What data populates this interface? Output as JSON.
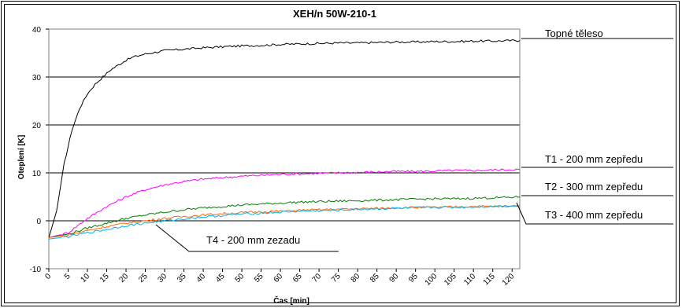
{
  "chart_data": {
    "type": "line",
    "title": "XEH/n 50W-210-1",
    "xlabel": "Čas [min]",
    "ylabel": "Oteplení [K]",
    "xlim": [
      0,
      122
    ],
    "ylim": [
      -10,
      40
    ],
    "x_ticks": [
      0,
      5,
      10,
      15,
      20,
      25,
      30,
      35,
      40,
      45,
      50,
      55,
      60,
      65,
      70,
      75,
      80,
      85,
      90,
      95,
      100,
      105,
      110,
      115,
      120
    ],
    "y_ticks": [
      -10,
      0,
      10,
      20,
      30,
      40
    ],
    "grid": "horizontal",
    "series": [
      {
        "name": "Topné těleso",
        "color": "#000000",
        "x": [
          0,
          2,
          4,
          6,
          8,
          10,
          12,
          14,
          16,
          18,
          20,
          22,
          25,
          30,
          35,
          40,
          45,
          50,
          55,
          60,
          65,
          70,
          75,
          80,
          85,
          90,
          95,
          100,
          105,
          110,
          115,
          120,
          122
        ],
        "y": [
          -3.5,
          2,
          12,
          19,
          23.5,
          26.5,
          28.5,
          30,
          31.5,
          32.5,
          33.5,
          34.2,
          34.8,
          35.5,
          35.8,
          36.1,
          36.3,
          36.5,
          36.6,
          36.8,
          36.9,
          37.0,
          37.1,
          37.1,
          37.2,
          37.3,
          37.3,
          37.4,
          37.4,
          37.5,
          37.5,
          37.6,
          37.6
        ]
      },
      {
        "name": "T1 - 200 mm zepředu",
        "color": "#ff00ff",
        "x": [
          0,
          5,
          10,
          15,
          20,
          25,
          30,
          35,
          40,
          45,
          50,
          55,
          60,
          65,
          70,
          75,
          80,
          85,
          90,
          95,
          100,
          105,
          110,
          115,
          120,
          122
        ],
        "y": [
          -3.5,
          -2.5,
          0.5,
          3,
          5,
          6.5,
          7.5,
          8.2,
          8.7,
          9.0,
          9.3,
          9.5,
          9.7,
          9.8,
          9.9,
          10.0,
          10.1,
          10.2,
          10.3,
          10.3,
          10.4,
          10.5,
          10.5,
          10.6,
          10.7,
          10.7
        ]
      },
      {
        "name": "T2 - 300 mm zepředu",
        "color": "#008000",
        "x": [
          0,
          5,
          10,
          15,
          20,
          25,
          30,
          35,
          40,
          45,
          50,
          55,
          60,
          65,
          70,
          75,
          80,
          85,
          90,
          95,
          100,
          105,
          110,
          115,
          120,
          122
        ],
        "y": [
          -3.5,
          -2.8,
          -1.5,
          -0.5,
          0.5,
          1.2,
          1.8,
          2.3,
          2.7,
          3.0,
          3.3,
          3.5,
          3.7,
          3.9,
          4.0,
          4.1,
          4.2,
          4.3,
          4.4,
          4.5,
          4.6,
          4.6,
          4.7,
          4.8,
          4.9,
          5.0
        ]
      },
      {
        "name": "T3 - 400 mm zepředu",
        "color": "#ff6600",
        "x": [
          0,
          5,
          10,
          15,
          20,
          25,
          30,
          35,
          40,
          45,
          50,
          55,
          60,
          65,
          70,
          75,
          80,
          85,
          90,
          95,
          100,
          105,
          110,
          115,
          120,
          122
        ],
        "y": [
          -3.5,
          -3.0,
          -2.0,
          -1.2,
          -0.5,
          0.0,
          0.5,
          0.9,
          1.2,
          1.5,
          1.7,
          1.9,
          2.0,
          2.2,
          2.3,
          2.4,
          2.5,
          2.6,
          2.7,
          2.8,
          2.8,
          2.9,
          3.0,
          3.0,
          3.1,
          3.2
        ]
      },
      {
        "name": "T4 - 200 mm zezadu",
        "color": "#00b0f0",
        "x": [
          0,
          5,
          10,
          15,
          20,
          25,
          30,
          35,
          40,
          45,
          50,
          55,
          60,
          65,
          70,
          75,
          80,
          85,
          90,
          95,
          100,
          105,
          110,
          115,
          120,
          122
        ],
        "y": [
          -3.8,
          -3.3,
          -2.5,
          -1.8,
          -1.0,
          -0.5,
          0.0,
          0.4,
          0.8,
          1.1,
          1.4,
          1.6,
          1.8,
          2.0,
          2.1,
          2.2,
          2.4,
          2.5,
          2.6,
          2.7,
          2.8,
          2.8,
          2.9,
          3.0,
          3.1,
          3.1
        ]
      }
    ]
  }
}
